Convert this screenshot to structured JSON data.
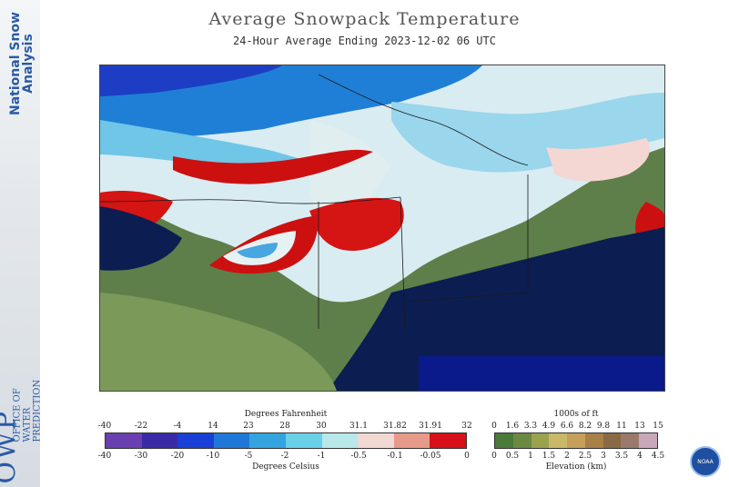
{
  "sidebar": {
    "nsa_line1": "National Snow",
    "nsa_line2": "Analysis",
    "office_lines": [
      "OFFICE OF",
      "WATER",
      "PREDICTION"
    ],
    "owp": "OWP"
  },
  "header": {
    "title": "Average Snowpack Temperature",
    "subtitle": "24-Hour Average Ending 2023-12-02 06 UTC"
  },
  "temp_legend": {
    "top_label": "Degrees Fahrenheit",
    "bottom_label": "Degrees Celsius",
    "fahrenheit_ticks": [
      "-40",
      "-22",
      "-4",
      "14",
      "23",
      "28",
      "30",
      "31.1",
      "31.82",
      "31.91",
      "32"
    ],
    "celsius_ticks": [
      "-40",
      "-30",
      "-20",
      "-10",
      "-5",
      "-2",
      "-1",
      "-0.5",
      "-0.1",
      "-0.05",
      "0"
    ],
    "colors": [
      "#8a7aa6",
      "#6a3fb0",
      "#3a2aa8",
      "#1a3fd6",
      "#1f78d8",
      "#34a4e0",
      "#6ad0e8",
      "#b8e8ea",
      "#f2d8d2",
      "#e89a8a",
      "#d8101a"
    ]
  },
  "elev_legend": {
    "top_label": "1000s of ft",
    "bottom_label": "Elevation (km)",
    "feet_ticks": [
      "0",
      "1.6",
      "3.3",
      "4.9",
      "6.6",
      "8.2",
      "9.8",
      "11",
      "13",
      "15"
    ],
    "km_ticks": [
      "0",
      "0.5",
      "1",
      "1.5",
      "2",
      "2.5",
      "3",
      "3.5",
      "4",
      "4.5"
    ],
    "colors": [
      "#4a7a3a",
      "#6a8a42",
      "#9aa24e",
      "#c8b868",
      "#c6a05a",
      "#a88048",
      "#8a6a44",
      "#9a7a6a",
      "#c8a8b8",
      "#f0ecf0"
    ]
  },
  "logo": {
    "text": "NOAA"
  }
}
